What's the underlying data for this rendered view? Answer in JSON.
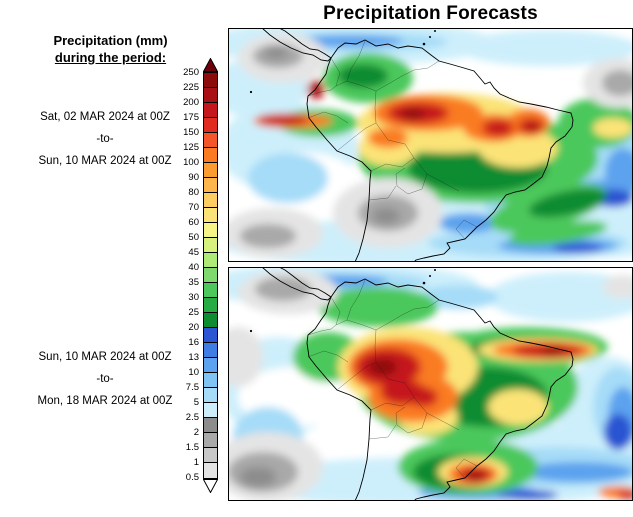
{
  "title": "Precipitation Forecasts",
  "legend": {
    "heading_line1": "Precipitation (mm)",
    "heading_line2": "during the period:",
    "levels": [
      "250",
      "225",
      "200",
      "175",
      "150",
      "125",
      "100",
      "90",
      "80",
      "70",
      "60",
      "50",
      "45",
      "40",
      "35",
      "30",
      "25",
      "20",
      "16",
      "13",
      "10",
      "7.5",
      "5",
      "2.5",
      "2",
      "1.5",
      "1",
      "0.5"
    ],
    "cell_colors": [
      "#8c0b0b",
      "#a81016",
      "#c4161c",
      "#e22b20",
      "#f4552a",
      "#fa7b22",
      "#fb9b30",
      "#fdb54c",
      "#fdcd63",
      "#fbe377",
      "#f7f488",
      "#d8f27e",
      "#aeea76",
      "#7eda6e",
      "#4cc85c",
      "#25ad44",
      "#0d8c30",
      "#2b55d2",
      "#3f7ce4",
      "#5ca2ee",
      "#80c4f4",
      "#a6dcf8",
      "#cdeffb",
      "#8c8c8c",
      "#a9a9a9",
      "#c8c8c8",
      "#e4e4e4"
    ],
    "arrow_top_color": "#6e0008",
    "arrow_bottom_color": "#ffffff"
  },
  "panels": [
    {
      "period": {
        "start": "Sat, 02 MAR 2024 at 00Z",
        "sep": "-to-",
        "end": "Sun, 10 MAR 2024 at 00Z"
      }
    },
    {
      "period": {
        "start": "Sun, 10 MAR 2024 at 00Z",
        "sep": "-to-",
        "end": "Mon, 18 MAR 2024 at 00Z"
      }
    }
  ],
  "chart_data": {
    "type": "heatmap",
    "variable": "Precipitation (mm)",
    "region": "South America and adjacent oceans",
    "colorbar_levels_mm": [
      250,
      225,
      200,
      175,
      150,
      125,
      100,
      90,
      80,
      70,
      60,
      50,
      45,
      40,
      35,
      30,
      25,
      20,
      16,
      13,
      10,
      7.5,
      5,
      2.5,
      2,
      1.5,
      1,
      0.5
    ],
    "panels": [
      {
        "position": "top",
        "period_start": "Sat, 02 MAR 2024 at 00Z",
        "period_end": "Sun, 10 MAR 2024 at 00Z"
      },
      {
        "position": "bottom",
        "period_start": "Sun, 10 MAR 2024 at 00Z",
        "period_end": "Mon, 18 MAR 2024 at 00Z"
      }
    ],
    "legend_position": "left",
    "grid": false
  }
}
